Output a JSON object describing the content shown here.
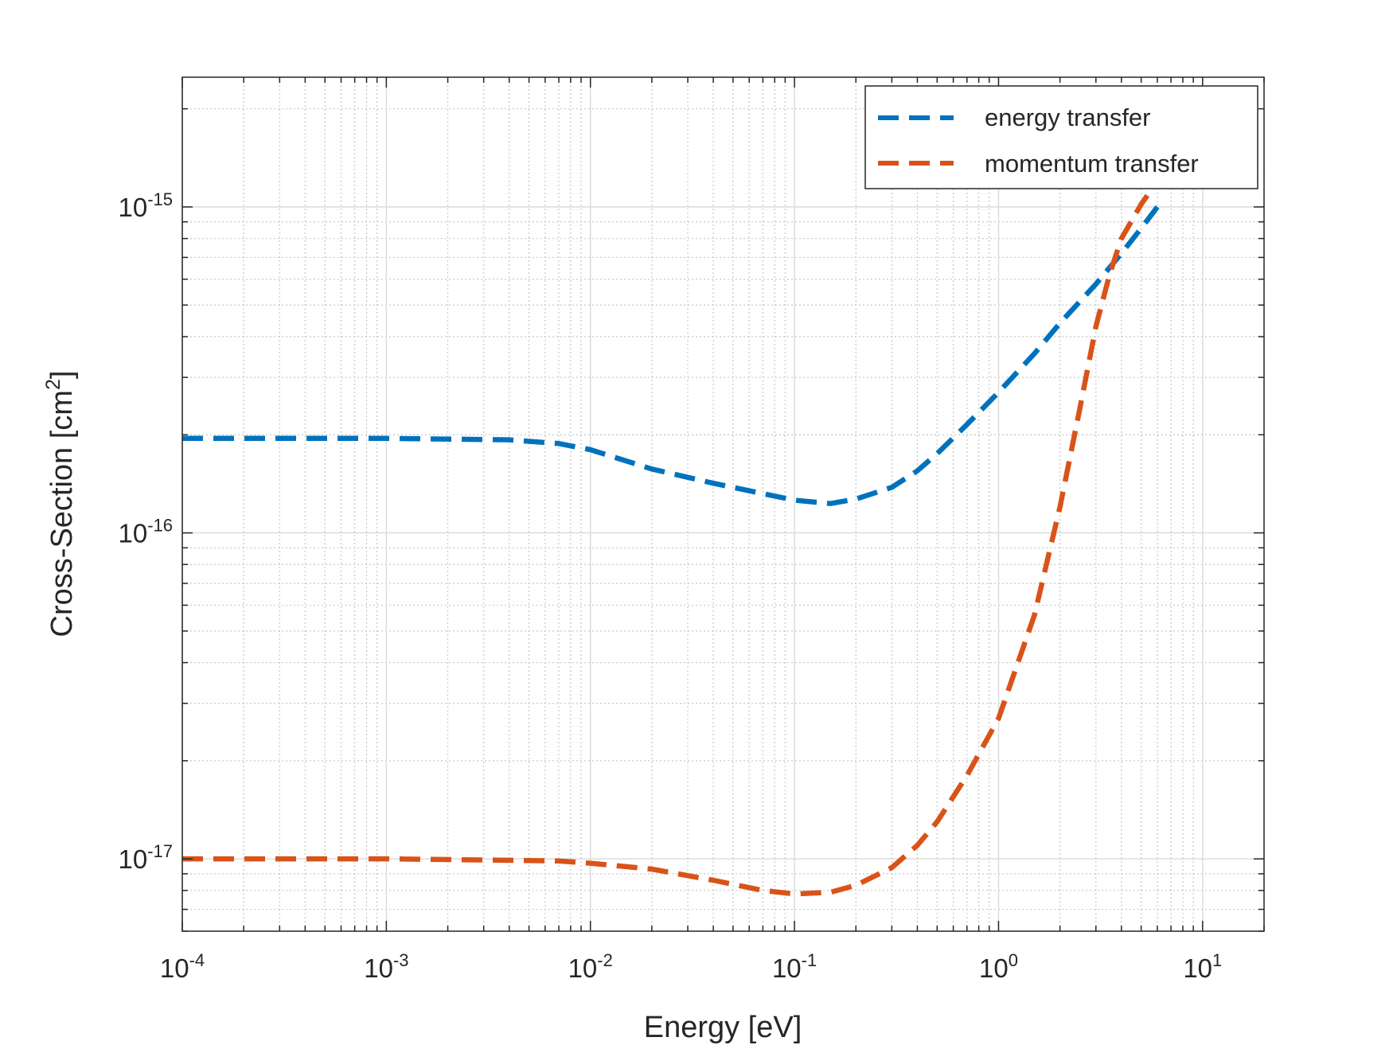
{
  "chart_data": {
    "type": "line",
    "title": "",
    "xlabel": "Energy [eV]",
    "ylabel": {
      "prefix": "Cross-Section [cm",
      "superscript": "2",
      "suffix": "]"
    },
    "xscale": "log",
    "yscale": "log",
    "xlim": [
      0.0001,
      20
    ],
    "ylim": [
      6e-18,
      2.5e-15
    ],
    "grid": true,
    "minor_grid": true,
    "legend_position": "top-right",
    "x_ticks": [
      {
        "value": 0.0001,
        "base": "10",
        "exp": "-4"
      },
      {
        "value": 0.001,
        "base": "10",
        "exp": "-3"
      },
      {
        "value": 0.01,
        "base": "10",
        "exp": "-2"
      },
      {
        "value": 0.1,
        "base": "10",
        "exp": "-1"
      },
      {
        "value": 1,
        "base": "10",
        "exp": "0"
      },
      {
        "value": 10,
        "base": "10",
        "exp": "1"
      }
    ],
    "y_ticks": [
      {
        "value": 1e-17,
        "base": "10",
        "exp": "-17"
      },
      {
        "value": 1e-16,
        "base": "10",
        "exp": "-16"
      },
      {
        "value": 1e-15,
        "base": "10",
        "exp": "-15"
      }
    ],
    "series": [
      {
        "name": "energy transfer",
        "color": "#0072BD",
        "style": "dashed",
        "x": [
          0.0001,
          0.001,
          0.004,
          0.007,
          0.01,
          0.02,
          0.04,
          0.07,
          0.1,
          0.15,
          0.2,
          0.3,
          0.4,
          0.5,
          0.7,
          1.0,
          1.5,
          2.0,
          3.0,
          4.0,
          5.0,
          6.0
        ],
        "y": [
          1.95e-16,
          1.95e-16,
          1.93e-16,
          1.88e-16,
          1.8e-16,
          1.57e-16,
          1.42e-16,
          1.32e-16,
          1.26e-16,
          1.23e-16,
          1.27e-16,
          1.38e-16,
          1.55e-16,
          1.75e-16,
          2.15e-16,
          2.7e-16,
          3.55e-16,
          4.4e-16,
          5.8e-16,
          7.2e-16,
          8.6e-16,
          1e-15
        ]
      },
      {
        "name": "momentum transfer",
        "color": "#D95319",
        "style": "dashed",
        "x": [
          0.0001,
          0.001,
          0.004,
          0.007,
          0.01,
          0.02,
          0.04,
          0.07,
          0.1,
          0.15,
          0.2,
          0.3,
          0.4,
          0.5,
          0.7,
          1.0,
          1.5,
          2.0,
          2.5,
          3.0,
          3.5,
          4.0,
          5.0,
          6.0
        ],
        "y": [
          1e-17,
          1e-17,
          9.9e-18,
          9.85e-18,
          9.7e-18,
          9.3e-18,
          8.6e-18,
          8e-18,
          7.8e-18,
          7.9e-18,
          8.3e-18,
          9.4e-18,
          1.1e-17,
          1.3e-17,
          1.8e-17,
          2.7e-17,
          5.6e-17,
          1.2e-16,
          2.4e-16,
          4.3e-16,
          6.2e-16,
          8e-16,
          1.02e-15,
          1.2e-15
        ]
      }
    ]
  }
}
